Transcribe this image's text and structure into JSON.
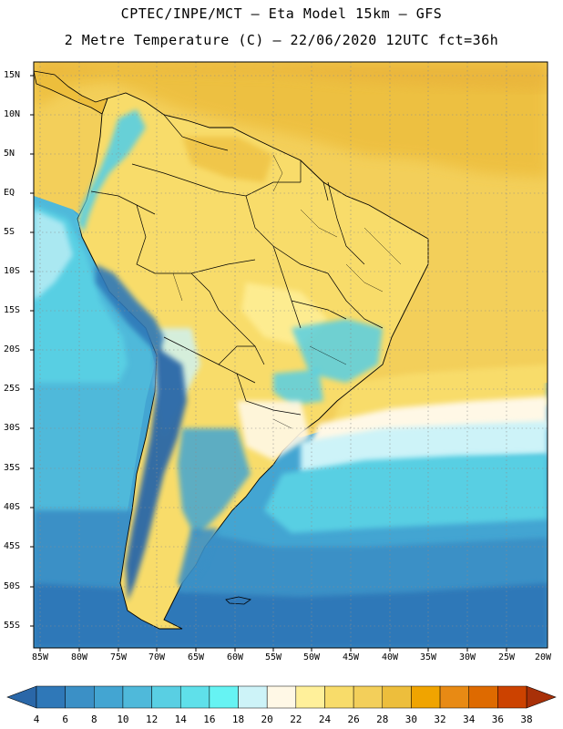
{
  "title": {
    "line1": "CPTEC/INPE/MCT –  Eta Model 15km – GFS",
    "line2": "2 Metre Temperature (C) – 22/06/2020 12UTC fct=36h"
  },
  "axes": {
    "lat_labels": [
      "15N",
      "10N",
      "5N",
      "EQ",
      "5S",
      "10S",
      "15S",
      "20S",
      "25S",
      "30S",
      "35S",
      "40S",
      "45S",
      "50S",
      "55S"
    ],
    "lon_labels": [
      "85W",
      "80W",
      "75W",
      "70W",
      "65W",
      "60W",
      "55W",
      "50W",
      "45W",
      "40W",
      "35W",
      "30W",
      "25W",
      "20W"
    ]
  },
  "colorbar": {
    "labels": [
      "4",
      "6",
      "8",
      "10",
      "12",
      "14",
      "16",
      "18",
      "20",
      "22",
      "24",
      "26",
      "28",
      "30",
      "32",
      "34",
      "36",
      "38"
    ],
    "colors": [
      "#2a67a8",
      "#2f78b8",
      "#3b90c6",
      "#43a5d2",
      "#4fb9da",
      "#59cfe3",
      "#5fe0ea",
      "#66f3f3",
      "#cdf3f8",
      "#fff8e6",
      "#fff09a",
      "#f8dc6a",
      "#f3cf5a",
      "#edbe3c",
      "#f0a400",
      "#e88a14",
      "#de6a00",
      "#cc4200",
      "#a83008"
    ],
    "min_label": "4",
    "max_label": "38"
  },
  "map_colors": {
    "ocean_deep": "#3b90c6",
    "ocean_mid": "#43a5d2",
    "ocean_light": "#4fb9da",
    "ocean_cyan": "#59cfe3",
    "ocean_bright": "#66f3f3",
    "ocean_pale": "#cdf3f8",
    "ocean_cream": "#fff8e6",
    "warm_pale": "#fff09a",
    "warm_yellow": "#f8dc6a",
    "warm_gold": "#f3cf5a",
    "warm_orange": "#edbe3c",
    "andes_dark": "#2a67a8",
    "andes_mid": "#2f78b8"
  }
}
